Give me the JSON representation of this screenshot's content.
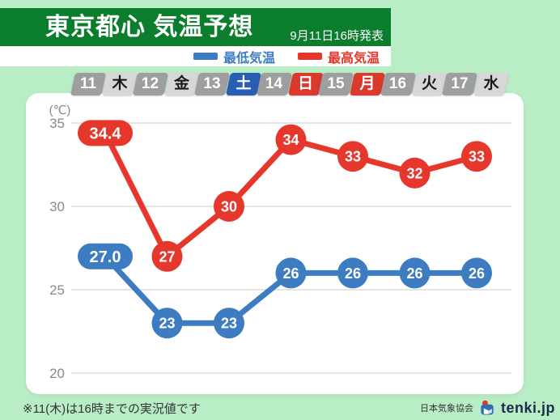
{
  "header": {
    "title": "東京都心 気温予想",
    "release": "9月11日16時発表"
  },
  "legend": {
    "min_label": "最低気温",
    "max_label": "最高気温"
  },
  "days": [
    {
      "date": "11",
      "weekday": "木",
      "kind": "normal"
    },
    {
      "date": "12",
      "weekday": "金",
      "kind": "normal"
    },
    {
      "date": "13",
      "weekday": "土",
      "kind": "saturday"
    },
    {
      "date": "14",
      "weekday": "日",
      "kind": "holiday"
    },
    {
      "date": "15",
      "weekday": "月",
      "kind": "holiday"
    },
    {
      "date": "16",
      "weekday": "火",
      "kind": "normal"
    },
    {
      "date": "17",
      "weekday": "水",
      "kind": "normal"
    }
  ],
  "chart_data": {
    "type": "line",
    "title": "東京都心 気温予想",
    "categories": [
      "11木",
      "12金",
      "13土",
      "14日",
      "15月",
      "16火",
      "17水"
    ],
    "series": [
      {
        "name": "最高気温",
        "color": "#e6372c",
        "values": [
          34.4,
          27,
          30,
          34,
          33,
          32,
          33
        ],
        "point_labels": [
          "34.4",
          "27",
          "30",
          "34",
          "33",
          "32",
          "33"
        ]
      },
      {
        "name": "最低気温",
        "color": "#3d7cc0",
        "values": [
          27.0,
          23,
          23,
          26,
          26,
          26,
          26
        ],
        "point_labels": [
          "27.0",
          "23",
          "23",
          "26",
          "26",
          "26",
          "26"
        ]
      }
    ],
    "ylabel": "(℃)",
    "yticks": [
      35,
      30,
      25,
      20
    ],
    "ylim": [
      19,
      36
    ],
    "grid": true,
    "legend_position": "top-right"
  },
  "footer": {
    "note": "※11(木)は16時までの実況値です",
    "agency": "日本気象協会",
    "brand": "tenki.jp"
  },
  "colors": {
    "background": "#b9edc6",
    "banner_green": "#0a7e2c",
    "max_red": "#e6372c",
    "min_blue": "#3d7cc0",
    "saturday_blue": "#2a5db4",
    "holiday_red": "#da392d",
    "date_chip_gray": "#9e9e9e",
    "weekday_chip_gray": "#d7d7d7",
    "grid_gray": "#dcdcdc",
    "axis_text": "#8a8a8a",
    "footer_text": "#333333",
    "brand_navy": "#1c2b4a"
  }
}
